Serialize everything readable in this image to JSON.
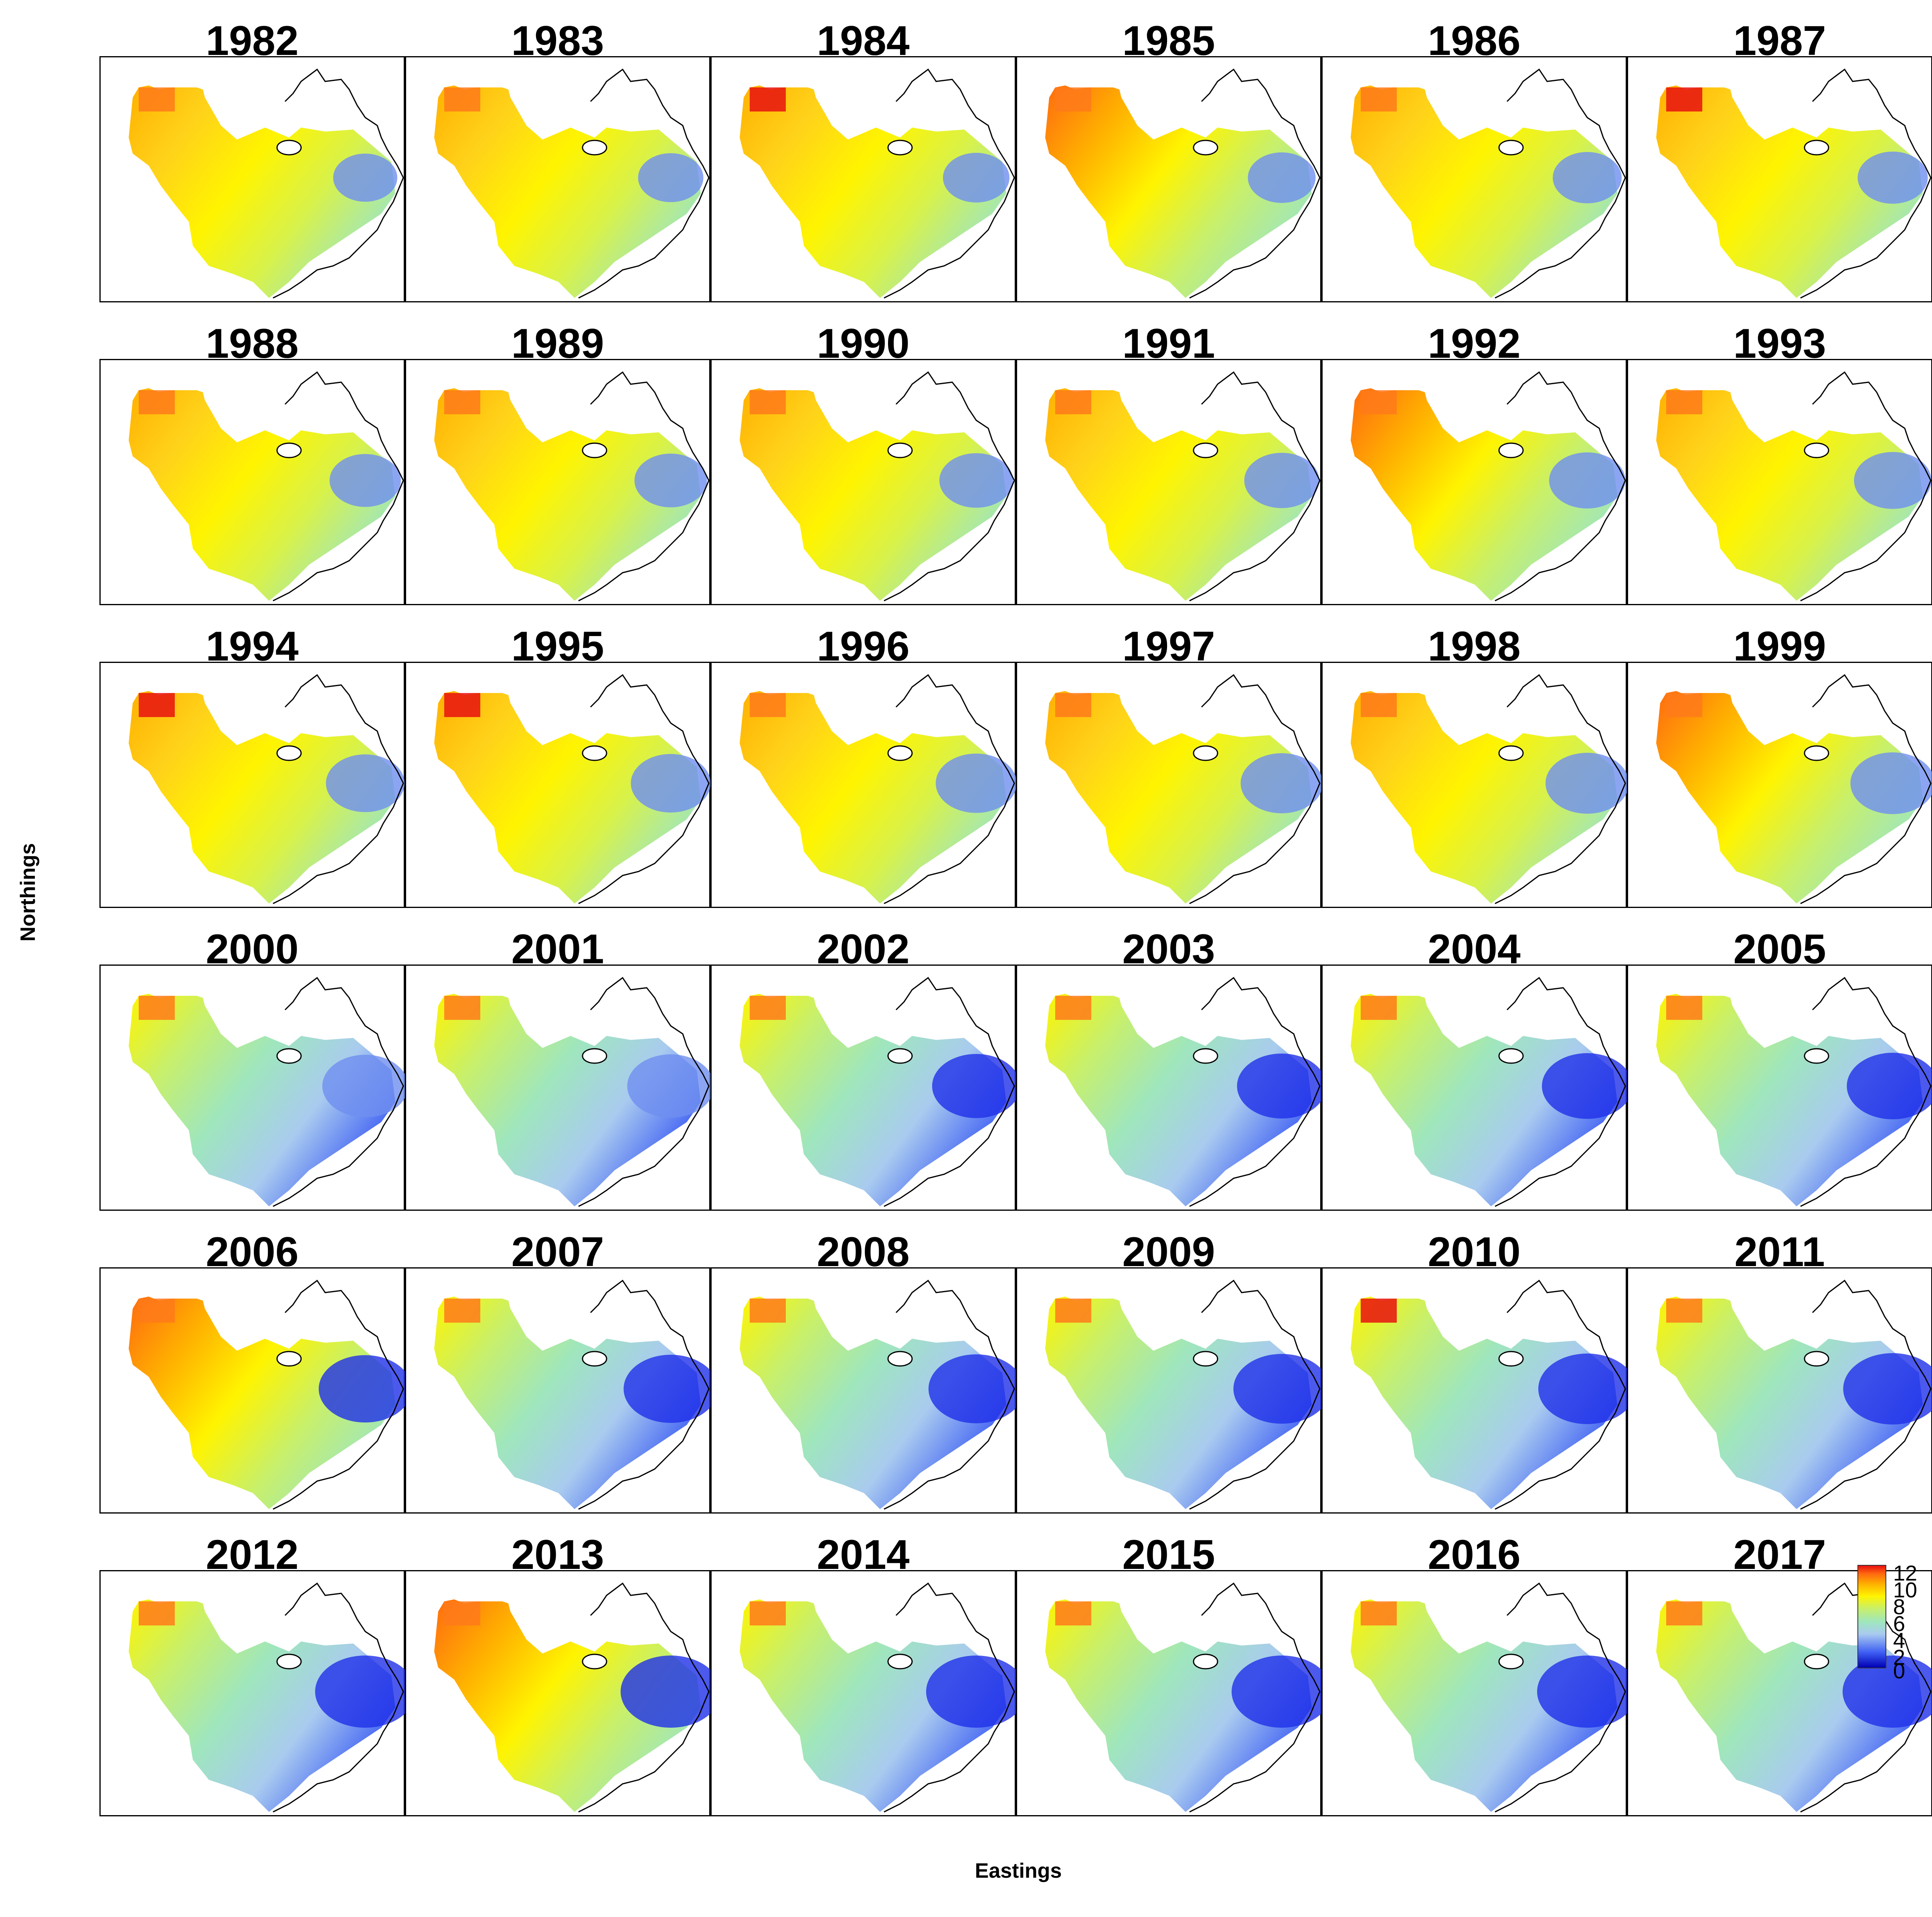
{
  "figure": {
    "xlabel": "Eastings",
    "ylabel": "Northings"
  },
  "panels": [
    {
      "title": "1982"
    },
    {
      "title": "1983"
    },
    {
      "title": "1984"
    },
    {
      "title": "1985"
    },
    {
      "title": "1986"
    },
    {
      "title": "1987"
    },
    {
      "title": "1988"
    },
    {
      "title": "1989"
    },
    {
      "title": "1990"
    },
    {
      "title": "1991"
    },
    {
      "title": "1992"
    },
    {
      "title": "1993"
    },
    {
      "title": "1994"
    },
    {
      "title": "1995"
    },
    {
      "title": "1996"
    },
    {
      "title": "1997"
    },
    {
      "title": "1998"
    },
    {
      "title": "1999"
    },
    {
      "title": "2000"
    },
    {
      "title": "2001"
    },
    {
      "title": "2002"
    },
    {
      "title": "2003"
    },
    {
      "title": "2004"
    },
    {
      "title": "2005"
    },
    {
      "title": "2006"
    },
    {
      "title": "2007"
    },
    {
      "title": "2008"
    },
    {
      "title": "2009"
    },
    {
      "title": "2010"
    },
    {
      "title": "2011"
    },
    {
      "title": "2012"
    },
    {
      "title": "2013"
    },
    {
      "title": "2014"
    },
    {
      "title": "2015"
    },
    {
      "title": "2016"
    },
    {
      "title": "2017"
    }
  ],
  "legend": {
    "ticks": [
      "12",
      "10",
      "8",
      "6",
      "4",
      "2",
      "0"
    ],
    "colors": [
      "#0000b4",
      "#3f5ff4",
      "#a9cbef",
      "#9fe6bd",
      "#c8f06a",
      "#fff400",
      "#ffb000",
      "#ff6a10",
      "#e81010"
    ]
  }
}
